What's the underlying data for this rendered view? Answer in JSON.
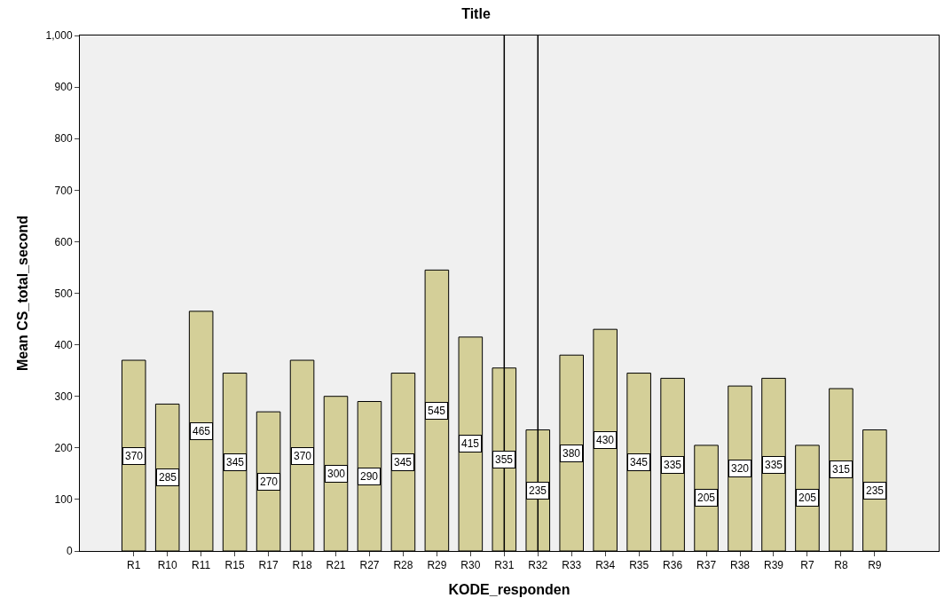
{
  "chart_data": {
    "type": "bar",
    "title": "Title",
    "xlabel": "KODE_responden",
    "ylabel": "Mean CS_total_second",
    "categories": [
      "R1",
      "R10",
      "R11",
      "R15",
      "R17",
      "R18",
      "R21",
      "R27",
      "R28",
      "R29",
      "R30",
      "R31",
      "R32",
      "R33",
      "R34",
      "R35",
      "R36",
      "R37",
      "R38",
      "R39",
      "R7",
      "R8",
      "R9"
    ],
    "values": [
      370,
      285,
      465,
      345,
      270,
      370,
      300,
      290,
      345,
      545,
      415,
      355,
      235,
      380,
      430,
      345,
      335,
      205,
      320,
      335,
      205,
      315,
      235
    ],
    "color": "#d4cf98",
    "ylim": [
      0,
      1000
    ],
    "yticks": [
      0,
      100,
      200,
      300,
      400,
      500,
      600,
      700,
      800,
      900,
      {
        "value": 1000,
        "label": "1,000"
      }
    ],
    "data_labels": true,
    "grid": false,
    "ref_lines": [
      {
        "axis": "x",
        "value": "R31",
        "color": "#000000"
      },
      {
        "axis": "x",
        "value": "R32",
        "color": "#000000"
      }
    ]
  }
}
